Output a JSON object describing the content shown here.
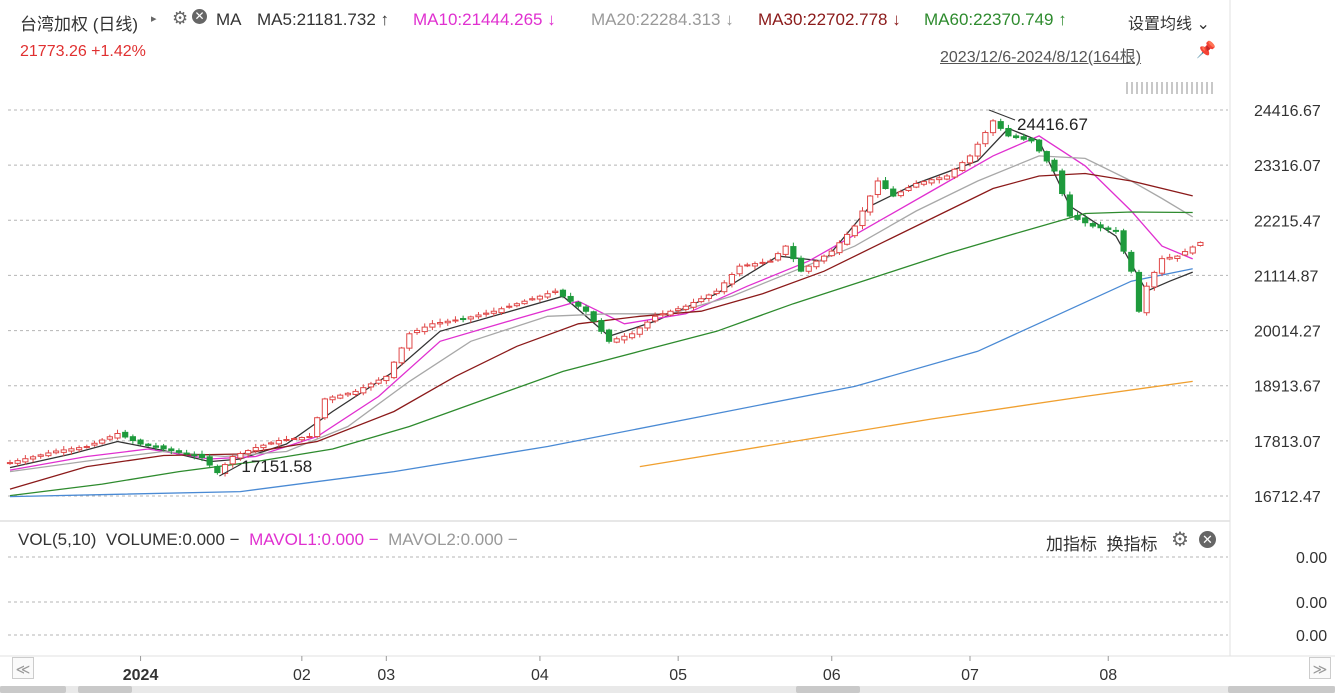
{
  "header": {
    "title": "台湾加权 (日线)",
    "arrow": "▸",
    "gear": "⚙",
    "close": "✕",
    "ma_label": "MA",
    "ma_items": [
      {
        "text": "MA5:21181.732",
        "arrow": "↑",
        "color": "#333333"
      },
      {
        "text": "MA10:21444.265",
        "arrow": "↓",
        "color": "#e030d0"
      },
      {
        "text": "MA20:22284.313",
        "arrow": "↓",
        "color": "#999999"
      },
      {
        "text": "MA30:22702.778",
        "arrow": "↓",
        "color": "#8b1a1a"
      },
      {
        "text": "MA60:22370.749",
        "arrow": "↑",
        "color": "#2e8b2e"
      }
    ],
    "setting_label": "设置均线",
    "setting_arrow": "⌄",
    "price": "21773.26 +1.42%",
    "range": "2023/12/6-2024/8/12(164根)",
    "pin": "📌"
  },
  "volume": {
    "title": "VOL(5,10)",
    "volume": "VOLUME:0.000 −",
    "mavol1": "MAVOL1:0.000 −",
    "mavol2": "MAVOL2:0.000 −",
    "add_indicator": "加指标",
    "switch_indicator": "换指标",
    "gear": "⚙",
    "close": "✕",
    "colors": {
      "mavol1": "#e030d0",
      "mavol2": "#999999"
    }
  },
  "scrollbar": {
    "left": "≪",
    "right": "≫"
  },
  "chart_data": {
    "type": "candlestick",
    "x_ticks": [
      {
        "label": "2024",
        "index": 17
      },
      {
        "label": "02",
        "index": 38
      },
      {
        "label": "03",
        "index": 49
      },
      {
        "label": "04",
        "index": 69
      },
      {
        "label": "05",
        "index": 87
      },
      {
        "label": "06",
        "index": 107
      },
      {
        "label": "07",
        "index": 125
      },
      {
        "label": "08",
        "index": 143
      }
    ],
    "y_ticks": [
      24416.67,
      23316.07,
      22215.47,
      21114.87,
      20014.27,
      18913.67,
      17813.07,
      16712.47
    ],
    "ylim": [
      16550,
      24600
    ],
    "high_label": "24416.67",
    "low_label": "17151.58",
    "volume_ticks": [
      "0.00",
      "0.00",
      "0.00"
    ],
    "candles": [],
    "anchors": [
      {
        "i": 0,
        "c": 17380
      },
      {
        "i": 6,
        "c": 17610
      },
      {
        "i": 10,
        "c": 17700
      },
      {
        "i": 14,
        "c": 17960
      },
      {
        "i": 17,
        "c": 17750
      },
      {
        "i": 21,
        "c": 17620
      },
      {
        "i": 25,
        "c": 17480
      },
      {
        "i": 27,
        "c": 17180
      },
      {
        "i": 29,
        "c": 17500
      },
      {
        "i": 32,
        "c": 17680
      },
      {
        "i": 35,
        "c": 17820
      },
      {
        "i": 39,
        "c": 17900
      },
      {
        "i": 41,
        "c": 18650
      },
      {
        "i": 45,
        "c": 18800
      },
      {
        "i": 49,
        "c": 19100
      },
      {
        "i": 52,
        "c": 19950
      },
      {
        "i": 55,
        "c": 20150
      },
      {
        "i": 59,
        "c": 20250
      },
      {
        "i": 63,
        "c": 20400
      },
      {
        "i": 67,
        "c": 20600
      },
      {
        "i": 71,
        "c": 20800
      },
      {
        "i": 75,
        "c": 20400
      },
      {
        "i": 78,
        "c": 19800
      },
      {
        "i": 81,
        "c": 19950
      },
      {
        "i": 84,
        "c": 20300
      },
      {
        "i": 88,
        "c": 20500
      },
      {
        "i": 92,
        "c": 20800
      },
      {
        "i": 95,
        "c": 21300
      },
      {
        "i": 99,
        "c": 21400
      },
      {
        "i": 101,
        "c": 21700
      },
      {
        "i": 103,
        "c": 21200
      },
      {
        "i": 107,
        "c": 21600
      },
      {
        "i": 110,
        "c": 22100
      },
      {
        "i": 113,
        "c": 23000
      },
      {
        "i": 115,
        "c": 22700
      },
      {
        "i": 118,
        "c": 22950
      },
      {
        "i": 122,
        "c": 23100
      },
      {
        "i": 125,
        "c": 23500
      },
      {
        "i": 128,
        "c": 24200
      },
      {
        "i": 130,
        "c": 23900
      },
      {
        "i": 133,
        "c": 23800
      },
      {
        "i": 136,
        "c": 23200
      },
      {
        "i": 138,
        "c": 22300
      },
      {
        "i": 141,
        "c": 22100
      },
      {
        "i": 144,
        "c": 22000
      },
      {
        "i": 146,
        "c": 21200
      },
      {
        "i": 147,
        "c": 20400
      },
      {
        "i": 148,
        "c": 20900
      },
      {
        "i": 150,
        "c": 21450
      },
      {
        "i": 152,
        "c": 21500
      },
      {
        "i": 155,
        "c": 21773.26
      }
    ],
    "lines": [
      {
        "name": "MA5",
        "color": "#333333",
        "width": 1.3,
        "points": [
          [
            0,
            17280
          ],
          [
            8,
            17550
          ],
          [
            14,
            17800
          ],
          [
            20,
            17620
          ],
          [
            26,
            17400
          ],
          [
            30,
            17450
          ],
          [
            36,
            17750
          ],
          [
            42,
            18400
          ],
          [
            50,
            19200
          ],
          [
            56,
            20000
          ],
          [
            64,
            20350
          ],
          [
            72,
            20700
          ],
          [
            78,
            19900
          ],
          [
            84,
            20200
          ],
          [
            92,
            20750
          ],
          [
            100,
            21500
          ],
          [
            106,
            21400
          ],
          [
            112,
            22500
          ],
          [
            118,
            22950
          ],
          [
            126,
            23400
          ],
          [
            130,
            24050
          ],
          [
            134,
            23800
          ],
          [
            138,
            22500
          ],
          [
            144,
            21900
          ],
          [
            148,
            20800
          ],
          [
            151,
            21000
          ],
          [
            154,
            21181
          ]
        ]
      },
      {
        "name": "MA10",
        "color": "#e030d0",
        "width": 1.3,
        "points": [
          [
            0,
            17230
          ],
          [
            10,
            17500
          ],
          [
            18,
            17650
          ],
          [
            26,
            17450
          ],
          [
            32,
            17500
          ],
          [
            40,
            17900
          ],
          [
            48,
            18700
          ],
          [
            56,
            19800
          ],
          [
            66,
            20250
          ],
          [
            74,
            20600
          ],
          [
            80,
            20150
          ],
          [
            88,
            20350
          ],
          [
            96,
            20900
          ],
          [
            104,
            21400
          ],
          [
            112,
            22100
          ],
          [
            120,
            22800
          ],
          [
            128,
            23500
          ],
          [
            134,
            23900
          ],
          [
            140,
            23300
          ],
          [
            146,
            22400
          ],
          [
            150,
            21700
          ],
          [
            154,
            21444
          ]
        ]
      },
      {
        "name": "MA20",
        "color": "#a8a8a8",
        "width": 1.3,
        "points": [
          [
            0,
            17200
          ],
          [
            12,
            17450
          ],
          [
            20,
            17600
          ],
          [
            28,
            17500
          ],
          [
            36,
            17600
          ],
          [
            44,
            18100
          ],
          [
            52,
            19000
          ],
          [
            60,
            19800
          ],
          [
            70,
            20300
          ],
          [
            78,
            20350
          ],
          [
            86,
            20350
          ],
          [
            94,
            20700
          ],
          [
            102,
            21200
          ],
          [
            110,
            21700
          ],
          [
            118,
            22400
          ],
          [
            126,
            23000
          ],
          [
            134,
            23500
          ],
          [
            140,
            23450
          ],
          [
            146,
            23000
          ],
          [
            150,
            22650
          ],
          [
            154,
            22284
          ]
        ]
      },
      {
        "name": "MA30",
        "color": "#8b1a1a",
        "width": 1.3,
        "points": [
          [
            0,
            16850
          ],
          [
            10,
            17300
          ],
          [
            20,
            17520
          ],
          [
            30,
            17550
          ],
          [
            40,
            17800
          ],
          [
            50,
            18400
          ],
          [
            58,
            19100
          ],
          [
            66,
            19700
          ],
          [
            74,
            20150
          ],
          [
            82,
            20300
          ],
          [
            90,
            20400
          ],
          [
            98,
            20750
          ],
          [
            106,
            21200
          ],
          [
            114,
            21800
          ],
          [
            122,
            22400
          ],
          [
            128,
            22850
          ],
          [
            134,
            23100
          ],
          [
            140,
            23150
          ],
          [
            146,
            23000
          ],
          [
            154,
            22703
          ]
        ]
      },
      {
        "name": "MA60",
        "color": "#2e8b2e",
        "width": 1.3,
        "points": [
          [
            0,
            16720
          ],
          [
            12,
            16950
          ],
          [
            22,
            17200
          ],
          [
            32,
            17400
          ],
          [
            42,
            17650
          ],
          [
            52,
            18100
          ],
          [
            62,
            18650
          ],
          [
            72,
            19200
          ],
          [
            82,
            19600
          ],
          [
            92,
            20000
          ],
          [
            102,
            20550
          ],
          [
            112,
            21050
          ],
          [
            122,
            21550
          ],
          [
            132,
            22000
          ],
          [
            140,
            22350
          ],
          [
            146,
            22380
          ],
          [
            154,
            22371
          ]
        ]
      },
      {
        "name": "",
        "color": "#4a8ad4",
        "width": 1.3,
        "points": [
          [
            0,
            16700
          ],
          [
            30,
            16800
          ],
          [
            50,
            17200
          ],
          [
            70,
            17700
          ],
          [
            90,
            18300
          ],
          [
            110,
            18900
          ],
          [
            126,
            19600
          ],
          [
            136,
            20300
          ],
          [
            146,
            21000
          ],
          [
            154,
            21250
          ]
        ]
      },
      {
        "name": "",
        "color": "#f0a030",
        "width": 1.3,
        "points": [
          [
            82,
            17300
          ],
          [
            100,
            17750
          ],
          [
            120,
            18250
          ],
          [
            140,
            18700
          ],
          [
            154,
            19000
          ]
        ]
      }
    ]
  }
}
